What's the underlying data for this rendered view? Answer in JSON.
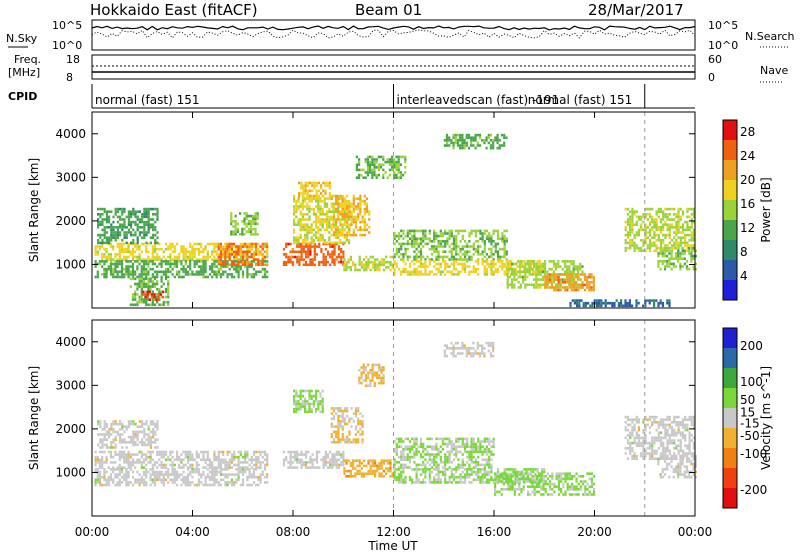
{
  "header": {
    "title": "Hokkaido East (fitACF)",
    "beam": "Beam 01",
    "date": "28/Mar/2017"
  },
  "top_panel": {
    "nsky_label": "N.Sky",
    "nsky_ticks": [
      "10^5",
      "10^0"
    ],
    "nsearch_label": "N.Search",
    "nsearch_ticks": [
      "10^5",
      "10^0"
    ],
    "freq_label_1": "Freq.",
    "freq_label_2": "[MHz]",
    "freq_ticks": [
      "18",
      "8"
    ],
    "nave_label": "Nave",
    "nave_ticks": [
      "60",
      "0"
    ],
    "cpid_label": "CPID",
    "cpid_segments": [
      {
        "label": "normal (fast) 151",
        "start_hour": 0,
        "end_hour": 12
      },
      {
        "label": "interleavedscan (fast) -191",
        "start_hour": 12,
        "end_hour": 22
      },
      {
        "label": "normal (fast) 151",
        "start_hour": 22,
        "end_hour": 24
      }
    ]
  },
  "colors": {
    "power": [
      "#1f1fd9",
      "#2a5aa8",
      "#2f8a6a",
      "#4aa64a",
      "#9ad23a",
      "#f0d020",
      "#f0a020",
      "#f06010",
      "#e01010"
    ],
    "velocity": [
      "#e01010",
      "#f04010",
      "#f08010",
      "#f0b030",
      "#c8c8c8",
      "#7ad83a",
      "#3aa83a",
      "#2a6aa8",
      "#2020d0"
    ]
  },
  "chart_data": [
    {
      "type": "heatmap",
      "name": "Power",
      "ylabel": "Slant Range [km]",
      "xlabel": "",
      "xlim": [
        0,
        24
      ],
      "ylim": [
        0,
        4500
      ],
      "yticks": [
        1000,
        2000,
        3000,
        4000
      ],
      "colorbar_label": "Power [dB]",
      "colorbar_ticks": [
        4,
        8,
        12,
        16,
        20,
        24,
        28
      ],
      "colorbar_range": [
        0,
        30
      ],
      "cells": [
        {
          "x0": 0.1,
          "x1": 7.0,
          "y0": 1100,
          "y1": 1500,
          "v": 18
        },
        {
          "x0": 0.1,
          "x1": 7.0,
          "y0": 700,
          "y1": 1100,
          "v": 12
        },
        {
          "x0": 0.2,
          "x1": 2.6,
          "y0": 1500,
          "y1": 2300,
          "v": 11
        },
        {
          "x0": 1.5,
          "x1": 3.0,
          "y0": 100,
          "y1": 700,
          "v": 13
        },
        {
          "x0": 2.0,
          "x1": 2.8,
          "y0": 200,
          "y1": 400,
          "v": 27
        },
        {
          "x0": 5.0,
          "x1": 7.0,
          "y0": 1000,
          "y1": 1500,
          "v": 24
        },
        {
          "x0": 5.5,
          "x1": 6.6,
          "y0": 1700,
          "y1": 2200,
          "v": 14
        },
        {
          "x0": 7.6,
          "x1": 10.0,
          "y0": 1000,
          "y1": 1500,
          "v": 25
        },
        {
          "x0": 8.0,
          "x1": 10.2,
          "y0": 1500,
          "y1": 2600,
          "v": 17
        },
        {
          "x0": 8.2,
          "x1": 9.5,
          "y0": 2500,
          "y1": 2900,
          "v": 19
        },
        {
          "x0": 9.5,
          "x1": 11.0,
          "y0": 1700,
          "y1": 2600,
          "v": 20
        },
        {
          "x0": 10.0,
          "x1": 12.0,
          "y0": 900,
          "y1": 1200,
          "v": 16
        },
        {
          "x0": 10.5,
          "x1": 12.5,
          "y0": 3000,
          "y1": 3500,
          "v": 13
        },
        {
          "x0": 12.0,
          "x1": 16.5,
          "y0": 1100,
          "y1": 1800,
          "v": 14
        },
        {
          "x0": 12.0,
          "x1": 18.0,
          "y0": 800,
          "y1": 1100,
          "v": 18
        },
        {
          "x0": 14.0,
          "x1": 16.5,
          "y0": 3700,
          "y1": 4000,
          "v": 12
        },
        {
          "x0": 16.5,
          "x1": 19.5,
          "y0": 500,
          "y1": 1100,
          "v": 15
        },
        {
          "x0": 18.0,
          "x1": 20.0,
          "y0": 400,
          "y1": 800,
          "v": 22
        },
        {
          "x0": 19.0,
          "x1": 23.0,
          "y0": 50,
          "y1": 200,
          "v": 6
        },
        {
          "x0": 21.2,
          "x1": 24.0,
          "y0": 1300,
          "y1": 2300,
          "v": 16
        },
        {
          "x0": 22.5,
          "x1": 24.0,
          "y0": 900,
          "y1": 1400,
          "v": 14
        }
      ]
    },
    {
      "type": "heatmap",
      "name": "Velocity",
      "ylabel": "Slant Range [km]",
      "xlabel": "Time UT",
      "xlim": [
        0,
        24
      ],
      "ylim": [
        0,
        4500
      ],
      "yticks": [
        1000,
        2000,
        3000,
        4000
      ],
      "xticks": [
        "00:00",
        "04:00",
        "08:00",
        "12:00",
        "16:00",
        "20:00",
        "00:00"
      ],
      "colorbar_label": "Velocity [m s^-1]",
      "colorbar_ticks": [
        -200,
        -100,
        -50,
        -15,
        15,
        50,
        100,
        200
      ],
      "colorbar_range": [
        -250,
        250
      ],
      "cells": [
        {
          "x0": 0.1,
          "x1": 7.0,
          "y0": 1100,
          "y1": 1500,
          "v": 0
        },
        {
          "x0": 0.1,
          "x1": 7.0,
          "y0": 700,
          "y1": 1100,
          "v": 0
        },
        {
          "x0": 0.2,
          "x1": 2.6,
          "y0": 1600,
          "y1": 2200,
          "v": 0
        },
        {
          "x0": 7.6,
          "x1": 10.0,
          "y0": 1100,
          "y1": 1500,
          "v": 0
        },
        {
          "x0": 8.0,
          "x1": 9.2,
          "y0": 2400,
          "y1": 2900,
          "v": 40
        },
        {
          "x0": 9.5,
          "x1": 10.8,
          "y0": 1700,
          "y1": 2500,
          "v": -30
        },
        {
          "x0": 10.0,
          "x1": 12.0,
          "y0": 900,
          "y1": 1300,
          "v": -60
        },
        {
          "x0": 10.6,
          "x1": 11.6,
          "y0": 3000,
          "y1": 3500,
          "v": -40
        },
        {
          "x0": 12.0,
          "x1": 16.0,
          "y0": 1100,
          "y1": 1800,
          "v": 30
        },
        {
          "x0": 12.0,
          "x1": 18.0,
          "y0": 800,
          "y1": 1100,
          "v": 30
        },
        {
          "x0": 16.0,
          "x1": 20.0,
          "y0": 500,
          "y1": 1000,
          "v": 40
        },
        {
          "x0": 14.0,
          "x1": 16.0,
          "y0": 3700,
          "y1": 4000,
          "v": 0
        },
        {
          "x0": 21.2,
          "x1": 24.0,
          "y0": 1300,
          "y1": 2300,
          "v": 0
        },
        {
          "x0": 22.5,
          "x1": 24.0,
          "y0": 900,
          "y1": 1400,
          "v": 0
        }
      ]
    }
  ]
}
